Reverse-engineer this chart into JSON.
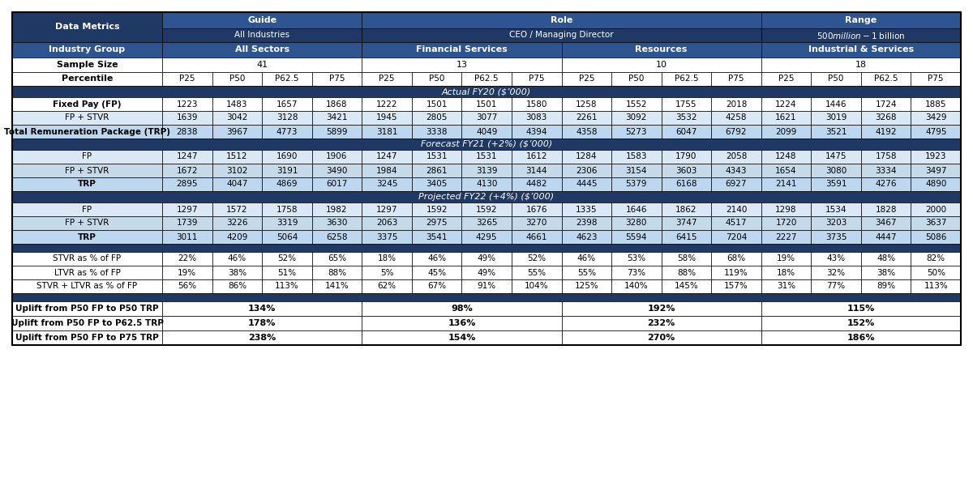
{
  "dark_blue": "#1F3864",
  "medium_blue": "#2E5590",
  "light_blue_1": "#BDD7EE",
  "light_blue_2": "#C5D9E8",
  "very_light_blue": "#DAE8F5",
  "white": "#FFFFFF",
  "header_rows": [
    {
      "label": "Data Metrics",
      "cols": [
        "Guide",
        "",
        "",
        "",
        "Role",
        "",
        "",
        "",
        "",
        "",
        "",
        "",
        "Range",
        "",
        "",
        ""
      ]
    },
    {
      "label": "",
      "cols": [
        "All Industries",
        "",
        "",
        "",
        "CEO / Managing Director",
        "",
        "",
        "",
        "",
        "",
        "",
        "",
        "$500 million - $1 billion",
        "",
        "",
        ""
      ]
    },
    {
      "label": "Industry Group",
      "cols": [
        "All Sectors",
        "",
        "",
        "",
        "Financial Services",
        "",
        "",
        "",
        "Resources",
        "",
        "",
        "",
        "Industrial & Services",
        "",
        "",
        ""
      ]
    },
    {
      "label": "Sample Size",
      "cols": [
        "41",
        "",
        "",
        "",
        "13",
        "",
        "",
        "",
        "10",
        "",
        "",
        "",
        "18",
        "",
        "",
        ""
      ]
    },
    {
      "label": "Percentile",
      "cols": [
        "P25",
        "P50",
        "P62.5",
        "P75",
        "P25",
        "P50",
        "P62.5",
        "P75",
        "P25",
        "P50",
        "P62.5",
        "P75",
        "P25",
        "P50",
        "P62.5",
        "P75"
      ]
    }
  ],
  "data_rows_fy20": [
    {
      "label": "Fixed Pay (FP)",
      "vals": [
        "1223",
        "1483",
        "1657",
        "1868",
        "1222",
        "1501",
        "1501",
        "1580",
        "1258",
        "1552",
        "1755",
        "2018",
        "1224",
        "1446",
        "1724",
        "1885"
      ],
      "bold": true
    },
    {
      "label": "FP + STVR",
      "vals": [
        "1639",
        "3042",
        "3128",
        "3421",
        "1945",
        "2805",
        "3077",
        "3083",
        "2261",
        "3092",
        "3532",
        "4258",
        "1621",
        "3019",
        "3268",
        "3429"
      ],
      "bold": false
    },
    {
      "label": "Total Remuneration Package (TRP)",
      "vals": [
        "2838",
        "3967",
        "4773",
        "5899",
        "3181",
        "3338",
        "4049",
        "4394",
        "4358",
        "5273",
        "6047",
        "6792",
        "2099",
        "3521",
        "4192",
        "4795"
      ],
      "bold": true
    }
  ],
  "data_rows_fy21": [
    {
      "label": "FP",
      "vals": [
        "1247",
        "1512",
        "1690",
        "1906",
        "1247",
        "1531",
        "1531",
        "1612",
        "1284",
        "1583",
        "1790",
        "2058",
        "1248",
        "1475",
        "1758",
        "1923"
      ],
      "bold": false
    },
    {
      "label": "FP + STVR",
      "vals": [
        "1672",
        "3102",
        "3191",
        "3490",
        "1984",
        "2861",
        "3139",
        "3144",
        "2306",
        "3154",
        "3603",
        "4343",
        "1654",
        "3080",
        "3334",
        "3497"
      ],
      "bold": false
    },
    {
      "label": "TRP",
      "vals": [
        "2895",
        "4047",
        "4869",
        "6017",
        "3245",
        "3405",
        "4130",
        "4482",
        "4445",
        "5379",
        "6168",
        "6927",
        "2141",
        "3591",
        "4276",
        "4890"
      ],
      "bold": true
    }
  ],
  "data_rows_fy22": [
    {
      "label": "FP",
      "vals": [
        "1297",
        "1572",
        "1758",
        "1982",
        "1297",
        "1592",
        "1592",
        "1676",
        "1335",
        "1646",
        "1862",
        "2140",
        "1298",
        "1534",
        "1828",
        "2000"
      ],
      "bold": false
    },
    {
      "label": "FP + STVR",
      "vals": [
        "1739",
        "3226",
        "3319",
        "3630",
        "2063",
        "2975",
        "3265",
        "3270",
        "2398",
        "3280",
        "3747",
        "4517",
        "1720",
        "3203",
        "3467",
        "3637"
      ],
      "bold": false
    },
    {
      "label": "TRP",
      "vals": [
        "3011",
        "4209",
        "5064",
        "6258",
        "3375",
        "3541",
        "4295",
        "4661",
        "4623",
        "5594",
        "6415",
        "7204",
        "2227",
        "3735",
        "4447",
        "5086"
      ],
      "bold": true
    }
  ],
  "pct_rows": [
    {
      "label": "STVR as % of FP",
      "vals": [
        "22%",
        "46%",
        "52%",
        "65%",
        "18%",
        "46%",
        "49%",
        "52%",
        "46%",
        "53%",
        "58%",
        "68%",
        "19%",
        "43%",
        "48%",
        "82%"
      ]
    },
    {
      "label": "LTVR as % of FP",
      "vals": [
        "19%",
        "38%",
        "51%",
        "88%",
        "5%",
        "45%",
        "49%",
        "55%",
        "55%",
        "73%",
        "88%",
        "119%",
        "18%",
        "32%",
        "38%",
        "50%"
      ]
    },
    {
      "label": "STVR + LTVR as % of FP",
      "vals": [
        "56%",
        "86%",
        "113%",
        "141%",
        "62%",
        "67%",
        "91%",
        "104%",
        "125%",
        "140%",
        "145%",
        "157%",
        "31%",
        "77%",
        "89%",
        "113%"
      ]
    }
  ],
  "uplift_rows": [
    {
      "label": "Uplift from P50 FP to P50 TRP",
      "vals": [
        "134%",
        "98%",
        "192%",
        "115%"
      ]
    },
    {
      "label": "Uplift from P50 FP to P62.5 TRP",
      "vals": [
        "178%",
        "136%",
        "232%",
        "152%"
      ]
    },
    {
      "label": "Uplift from P50 FP to P75 TRP",
      "vals": [
        "238%",
        "154%",
        "270%",
        "186%"
      ]
    }
  ]
}
